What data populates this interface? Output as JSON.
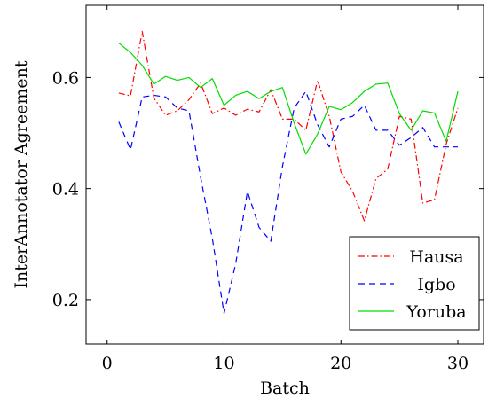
{
  "chart_data": {
    "type": "line",
    "xlabel": "Batch",
    "ylabel": "InterAnnotator Agreement",
    "xlim": [
      -1.8,
      32.2
    ],
    "ylim": [
      0.12,
      0.73
    ],
    "xticks": [
      0,
      10,
      20,
      30
    ],
    "yticks": [
      0.2,
      0.4,
      0.6
    ],
    "xtick_labels": [
      "0",
      "10",
      "20",
      "30"
    ],
    "ytick_labels": [
      "0.2",
      "0.4",
      "0.6"
    ],
    "grid": false,
    "legend_position": "bottom-right",
    "x": [
      1,
      2,
      3,
      4,
      5,
      6,
      7,
      8,
      9,
      10,
      11,
      12,
      13,
      14,
      15,
      16,
      17,
      18,
      19,
      20,
      21,
      22,
      23,
      24,
      25,
      26,
      27,
      28,
      29,
      30
    ],
    "series": [
      {
        "name": "Hausa",
        "color": "#ff0000",
        "dash": "dash-dot",
        "values": [
          0.572,
          0.567,
          0.683,
          0.563,
          0.532,
          0.54,
          0.56,
          0.59,
          0.535,
          0.545,
          0.532,
          0.543,
          0.538,
          0.578,
          0.525,
          0.525,
          0.505,
          0.595,
          0.53,
          0.43,
          0.395,
          0.342,
          0.418,
          0.435,
          0.53,
          0.525,
          0.374,
          0.38,
          0.48,
          0.545
        ]
      },
      {
        "name": "Igbo",
        "color": "#0000ff",
        "dash": "dashed",
        "values": [
          0.52,
          0.47,
          0.565,
          0.568,
          0.565,
          0.545,
          0.54,
          0.42,
          0.31,
          0.175,
          0.265,
          0.395,
          0.33,
          0.305,
          0.44,
          0.545,
          0.575,
          0.515,
          0.475,
          0.525,
          0.53,
          0.55,
          0.505,
          0.505,
          0.478,
          0.492,
          0.51,
          0.475,
          0.475,
          0.475
        ]
      },
      {
        "name": "Yoruba",
        "color": "#00dd00",
        "dash": "solid",
        "values": [
          0.662,
          0.645,
          0.622,
          0.588,
          0.602,
          0.595,
          0.6,
          0.582,
          0.598,
          0.55,
          0.568,
          0.575,
          0.562,
          0.575,
          0.582,
          0.518,
          0.462,
          0.498,
          0.548,
          0.542,
          0.555,
          0.575,
          0.588,
          0.59,
          0.535,
          0.505,
          0.54,
          0.536,
          0.485,
          0.575
        ]
      }
    ]
  }
}
